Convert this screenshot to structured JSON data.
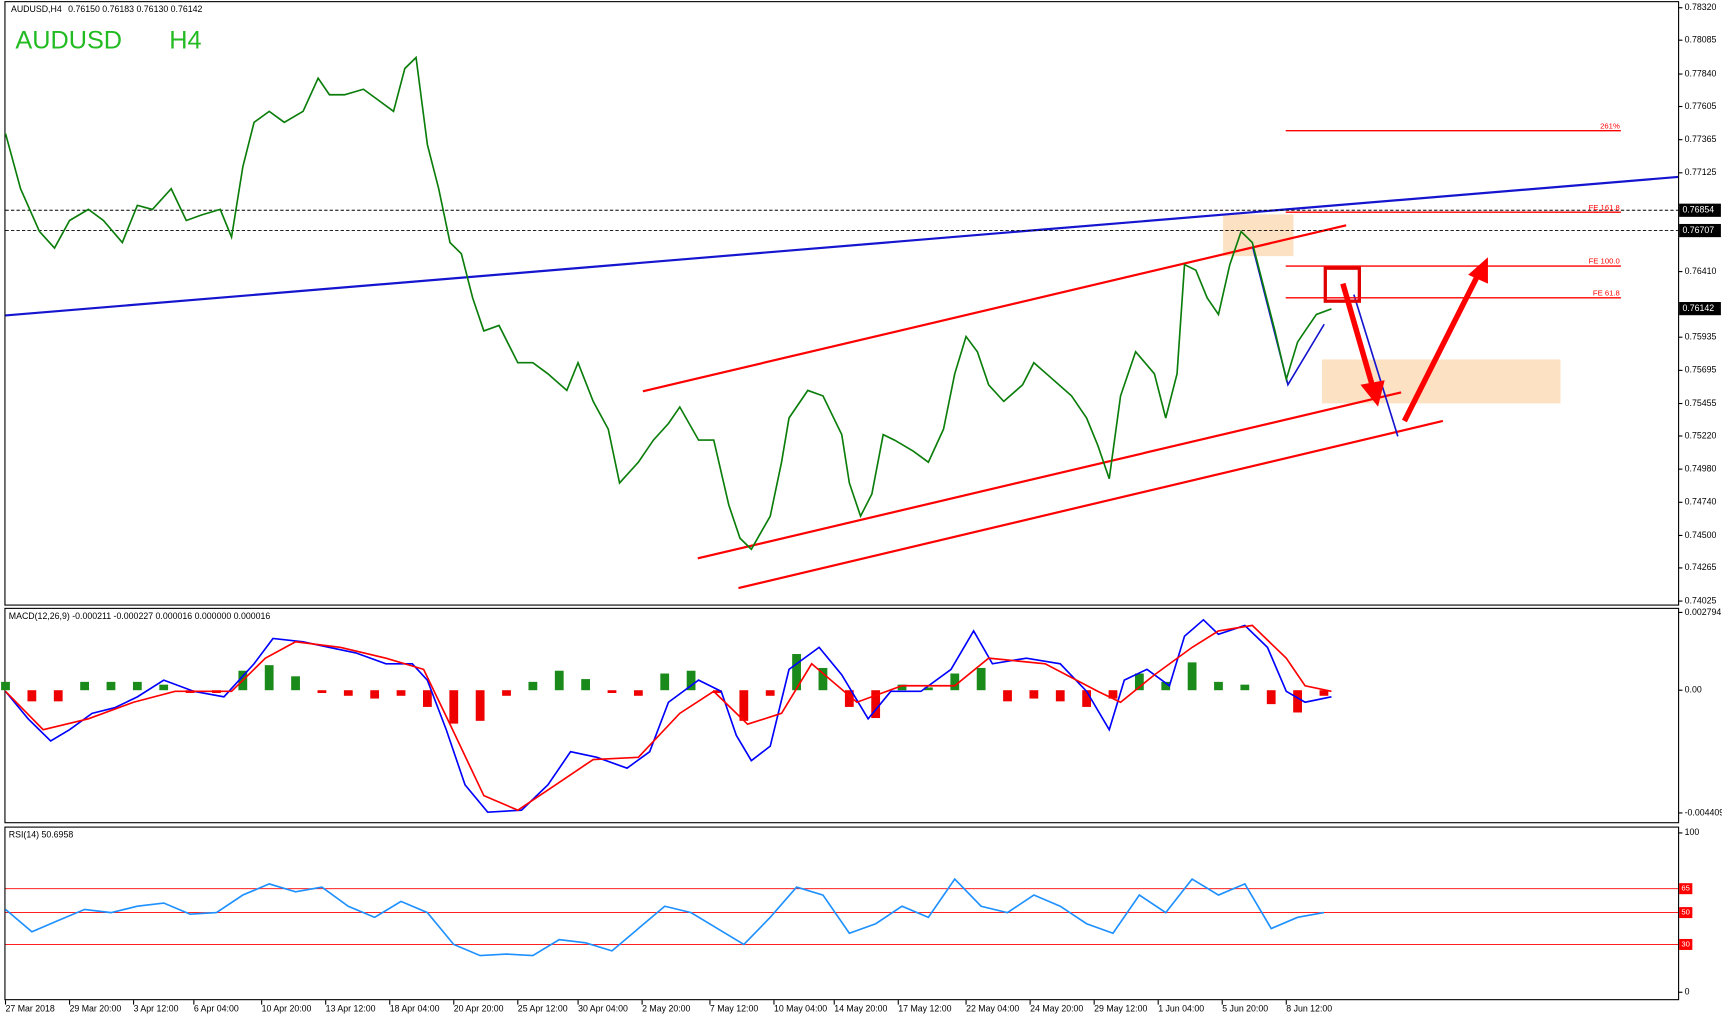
{
  "chart_data": [
    {
      "type": "line",
      "header": "AUDUSD,H4",
      "ohlc": "0.76150 0.76183 0.76130 0.76142",
      "title": "AUDUSD",
      "subtitle": "H4",
      "x": [
        0,
        4,
        9,
        13,
        17,
        22,
        26,
        31,
        35,
        39,
        44,
        48,
        52,
        57,
        60,
        63,
        66,
        70,
        74,
        79,
        83,
        86,
        90,
        95,
        99,
        103,
        106,
        109,
        112,
        115,
        118,
        121,
        124,
        127,
        131,
        136,
        140,
        144,
        149,
        152,
        156,
        160,
        163,
        168,
        172,
        176,
        179,
        184,
        188,
        192,
        195,
        198,
        203,
        206,
        208,
        213,
        217,
        222,
        224,
        227,
        230,
        233,
        236,
        241,
        245,
        249,
        252,
        255,
        258,
        261,
        265,
        270,
        273,
        278,
        283,
        287,
        290,
        293,
        296,
        300,
        305,
        308,
        311,
        313,
        316,
        319,
        322,
        325,
        328,
        331,
        334,
        337,
        340,
        343,
        345,
        348,
        352
      ],
      "series": [
        {
          "color": "#0a7d0a",
          "values": [
            0.7741,
            0.7701,
            0.767,
            0.7658,
            0.7678,
            0.7686,
            0.7678,
            0.7662,
            0.7689,
            0.7686,
            0.7701,
            0.7678,
            0.7682,
            0.7686,
            0.7666,
            0.7717,
            0.7749,
            0.7757,
            0.7749,
            0.7757,
            0.7781,
            0.7769,
            0.7769,
            0.7773,
            0.7765,
            0.7757,
            0.7788,
            0.7796,
            0.7733,
            0.7701,
            0.7662,
            0.7654,
            0.7622,
            0.7598,
            0.7602,
            0.7575,
            0.7575,
            0.7567,
            0.7555,
            0.7575,
            0.7547,
            0.7527,
            0.7488,
            0.7503,
            0.7519,
            0.7531,
            0.7543,
            0.7519,
            0.7519,
            0.7472,
            0.7448,
            0.744,
            0.7464,
            0.7503,
            0.7535,
            0.7555,
            0.7551,
            0.7523,
            0.7488,
            0.7464,
            0.748,
            0.7523,
            0.7519,
            0.7511,
            0.7503,
            0.7527,
            0.7567,
            0.7594,
            0.7583,
            0.7559,
            0.7547,
            0.7559,
            0.7575,
            0.7563,
            0.7551,
            0.7535,
            0.7515,
            0.7491,
            0.7551,
            0.7583,
            0.7567,
            0.7535,
            0.7567,
            0.7646,
            0.7642,
            0.7622,
            0.761,
            0.7646,
            0.767,
            0.7662,
            0.763,
            0.7598,
            0.7563,
            0.759,
            0.7598,
            0.761,
            0.7614
          ]
        }
      ],
      "xlim": [
        0,
        444
      ],
      "xticks": [
        {
          "value": 0,
          "label": "27 Mar 2018"
        },
        {
          "value": 17,
          "label": "29 Mar 20:00"
        },
        {
          "value": 34,
          "label": "3 Apr 12:00"
        },
        {
          "value": 50,
          "label": "6 Apr 04:00"
        },
        {
          "value": 68,
          "label": "10 Apr 20:00"
        },
        {
          "value": 85,
          "label": "13 Apr 12:00"
        },
        {
          "value": 102,
          "label": "18 Apr 04:00"
        },
        {
          "value": 119,
          "label": "20 Apr 20:00"
        },
        {
          "value": 136,
          "label": "25 Apr 12:00"
        },
        {
          "value": 152,
          "label": "30 Apr 04:00"
        },
        {
          "value": 169,
          "label": "2 May 20:00"
        },
        {
          "value": 187,
          "label": "7 May 12:00"
        },
        {
          "value": 204,
          "label": "10 May 04:00"
        },
        {
          "value": 220,
          "label": "14 May 20:00"
        },
        {
          "value": 237,
          "label": "17 May 12:00"
        },
        {
          "value": 255,
          "label": "22 May 04:00"
        },
        {
          "value": 272,
          "label": "24 May 20:00"
        },
        {
          "value": 289,
          "label": "29 May 12:00"
        },
        {
          "value": 306,
          "label": "1 Jun 04:00"
        },
        {
          "value": 323,
          "label": "5 Jun 20:00"
        },
        {
          "value": 340,
          "label": "8 Jun 12:00"
        }
      ],
      "ylim": [
        0.74,
        0.7836
      ],
      "yticks": [
        {
          "value": 0.7832,
          "label": "0.78320"
        },
        0.78085,
        {
          "value": 0.7784,
          "label": "0.77840"
        },
        0.77605,
        0.77365,
        0.77125,
        {
          "value": 0.7641,
          "label": "0.76410"
        },
        0.75935,
        0.75695,
        0.75455,
        {
          "value": 0.7522,
          "label": "0.75220"
        },
        {
          "value": 0.7498,
          "label": "0.74980"
        },
        {
          "value": 0.7474,
          "label": "0.74740"
        },
        {
          "value": 0.745,
          "label": "0.74500"
        },
        0.74265,
        0.74025
      ],
      "marked_levels": [
        0.76854,
        0.76707
      ],
      "last_price": 0.76142,
      "fib_color": "#ff0000",
      "fib_levels": [
        {
          "label": "261%",
          "value": 0.7743
        },
        {
          "label": "FE 161.8",
          "value": 0.7684
        },
        {
          "label": "FE 100.0",
          "value": 0.7645
        },
        {
          "label": "FE 61.8",
          "value": 0.7622
        }
      ]
    },
    {
      "type": "macd",
      "title": "MACD(12,26,9) -0.000211 -0.000227 0.000016 0.000000 0.000016",
      "x": [
        0,
        7,
        14,
        21,
        28,
        35,
        42,
        49,
        56,
        63,
        70,
        77,
        84,
        91,
        98,
        105,
        112,
        119,
        126,
        133,
        140,
        147,
        154,
        161,
        168,
        175,
        182,
        189,
        196,
        203,
        210,
        217,
        224,
        231,
        238,
        245,
        252,
        259,
        266,
        273,
        280,
        287,
        294,
        301,
        308,
        315,
        322,
        329,
        336,
        343,
        350
      ],
      "histogram": [
        0.0003,
        -0.0004,
        -0.0004,
        0.0003,
        0.0003,
        0.0003,
        0.0002,
        -0.0001,
        -0.0001,
        0.0007,
        0.0009,
        0.0005,
        -0.0001,
        -0.0002,
        -0.0003,
        -0.0002,
        -0.0006,
        -0.0012,
        -0.0011,
        -0.0002,
        0.0003,
        0.0007,
        0.0004,
        -0.0001,
        -0.0002,
        0.0006,
        0.0007,
        -0.0001,
        -0.0011,
        -0.0002,
        0.0013,
        0.0008,
        -0.0006,
        -0.001,
        0.0002,
        0.0001,
        0.0006,
        0.0008,
        -0.0004,
        -0.0003,
        -0.0004,
        -0.0006,
        -0.0003,
        0.0006,
        0.0003,
        0.001,
        0.0003,
        0.0002,
        -0.0005,
        -0.0008,
        -0.0002
      ],
      "up_color": "#1a8a1a",
      "down_color": "#ee0000",
      "series": [
        {
          "color": "#0000ff",
          "x": [
            0,
            6,
            12,
            17,
            23,
            29,
            35,
            42,
            50,
            58,
            66,
            71,
            79,
            86,
            93,
            101,
            108,
            112,
            117,
            122,
            128,
            137,
            144,
            150,
            157,
            165,
            171,
            176,
            184,
            190,
            194,
            198,
            203,
            208,
            216,
            222,
            229,
            235,
            243,
            251,
            257,
            262,
            271,
            280,
            287,
            293,
            297,
            303,
            309,
            313,
            318,
            322,
            329,
            335,
            340,
            345,
            352
          ],
          "values": [
            -4e-05,
            -0.00103,
            -0.00182,
            -0.00142,
            -0.00083,
            -0.00063,
            -0.00024,
            0.00036,
            -4e-05,
            -0.00024,
            0.00095,
            0.00186,
            0.00174,
            0.00154,
            0.00134,
            0.00095,
            0.00095,
            0.00036,
            -0.00142,
            -0.0034,
            -0.00438,
            -0.00431,
            -0.0034,
            -0.00221,
            -0.00241,
            -0.0028,
            -0.00221,
            -0.00043,
            0.00036,
            -4e-05,
            -0.00162,
            -0.00253,
            -0.00201,
            0.00075,
            0.00154,
            0.00055,
            -0.00103,
            -4e-05,
            -4e-05,
            0.00075,
            0.00213,
            0.00095,
            0.00115,
            0.00095,
            -4e-05,
            -0.00142,
            0.00036,
            0.00075,
            0.00016,
            0.00194,
            0.00253,
            0.00201,
            0.00233,
            0.00154,
            -4e-05,
            -0.00043,
            -0.00024
          ]
        },
        {
          "color": "#ff0000",
          "x": [
            0,
            10,
            22,
            34,
            45,
            60,
            69,
            77,
            89,
            101,
            111,
            118,
            127,
            136,
            146,
            156,
            168,
            179,
            188,
            197,
            206,
            214,
            226,
            238,
            252,
            261,
            276,
            290,
            296,
            305,
            315,
            322,
            331,
            340,
            345,
            352
          ],
          "values": [
            -4e-05,
            -0.00142,
            -0.00103,
            -0.00043,
            -4e-05,
            -4e-05,
            0.00115,
            0.00174,
            0.00154,
            0.00115,
            0.00075,
            -0.00122,
            -0.00379,
            -0.00431,
            -0.0034,
            -0.00249,
            -0.00241,
            -0.00083,
            -4e-05,
            -0.00122,
            -0.00083,
            0.00095,
            -0.00043,
            0.00016,
            0.00016,
            0.00115,
            0.00095,
            -4e-05,
            -0.00043,
            0.00055,
            0.00154,
            0.00213,
            0.00233,
            0.00115,
            0.00016,
            -4e-05
          ]
        }
      ],
      "ylim": [
        -0.00474,
        0.00296
      ],
      "yticks": [
        0.002794,
        {
          "value": 0,
          "label": "0.00"
        },
        -0.004409
      ]
    },
    {
      "type": "line",
      "title": "RSI(14) 50.6958",
      "x": [
        0,
        7,
        14,
        21,
        28,
        35,
        42,
        49,
        56,
        63,
        70,
        77,
        84,
        91,
        98,
        105,
        112,
        119,
        126,
        133,
        140,
        147,
        154,
        161,
        168,
        175,
        182,
        189,
        196,
        203,
        210,
        217,
        224,
        231,
        238,
        245,
        252,
        259,
        266,
        273,
        280,
        287,
        294,
        301,
        308,
        315,
        322,
        329,
        336,
        343,
        350
      ],
      "series": [
        {
          "color": "#1e90ff",
          "values": [
            52,
            38,
            45,
            52,
            50,
            54,
            56,
            49,
            50,
            61,
            68,
            63,
            66,
            54,
            47,
            57,
            50,
            30,
            23,
            24,
            23,
            33,
            31,
            26,
            40,
            54,
            50,
            40,
            30,
            47,
            66,
            61,
            37,
            43,
            54,
            47,
            71,
            54,
            50,
            61,
            54,
            43,
            37,
            61,
            50,
            71,
            61,
            68,
            40,
            47,
            50
          ]
        }
      ],
      "ylim": [
        -5,
        104
      ],
      "yticks": [
        100,
        0
      ],
      "levels": [
        65,
        50,
        30
      ],
      "level_color": "#ff0000"
    }
  ]
}
